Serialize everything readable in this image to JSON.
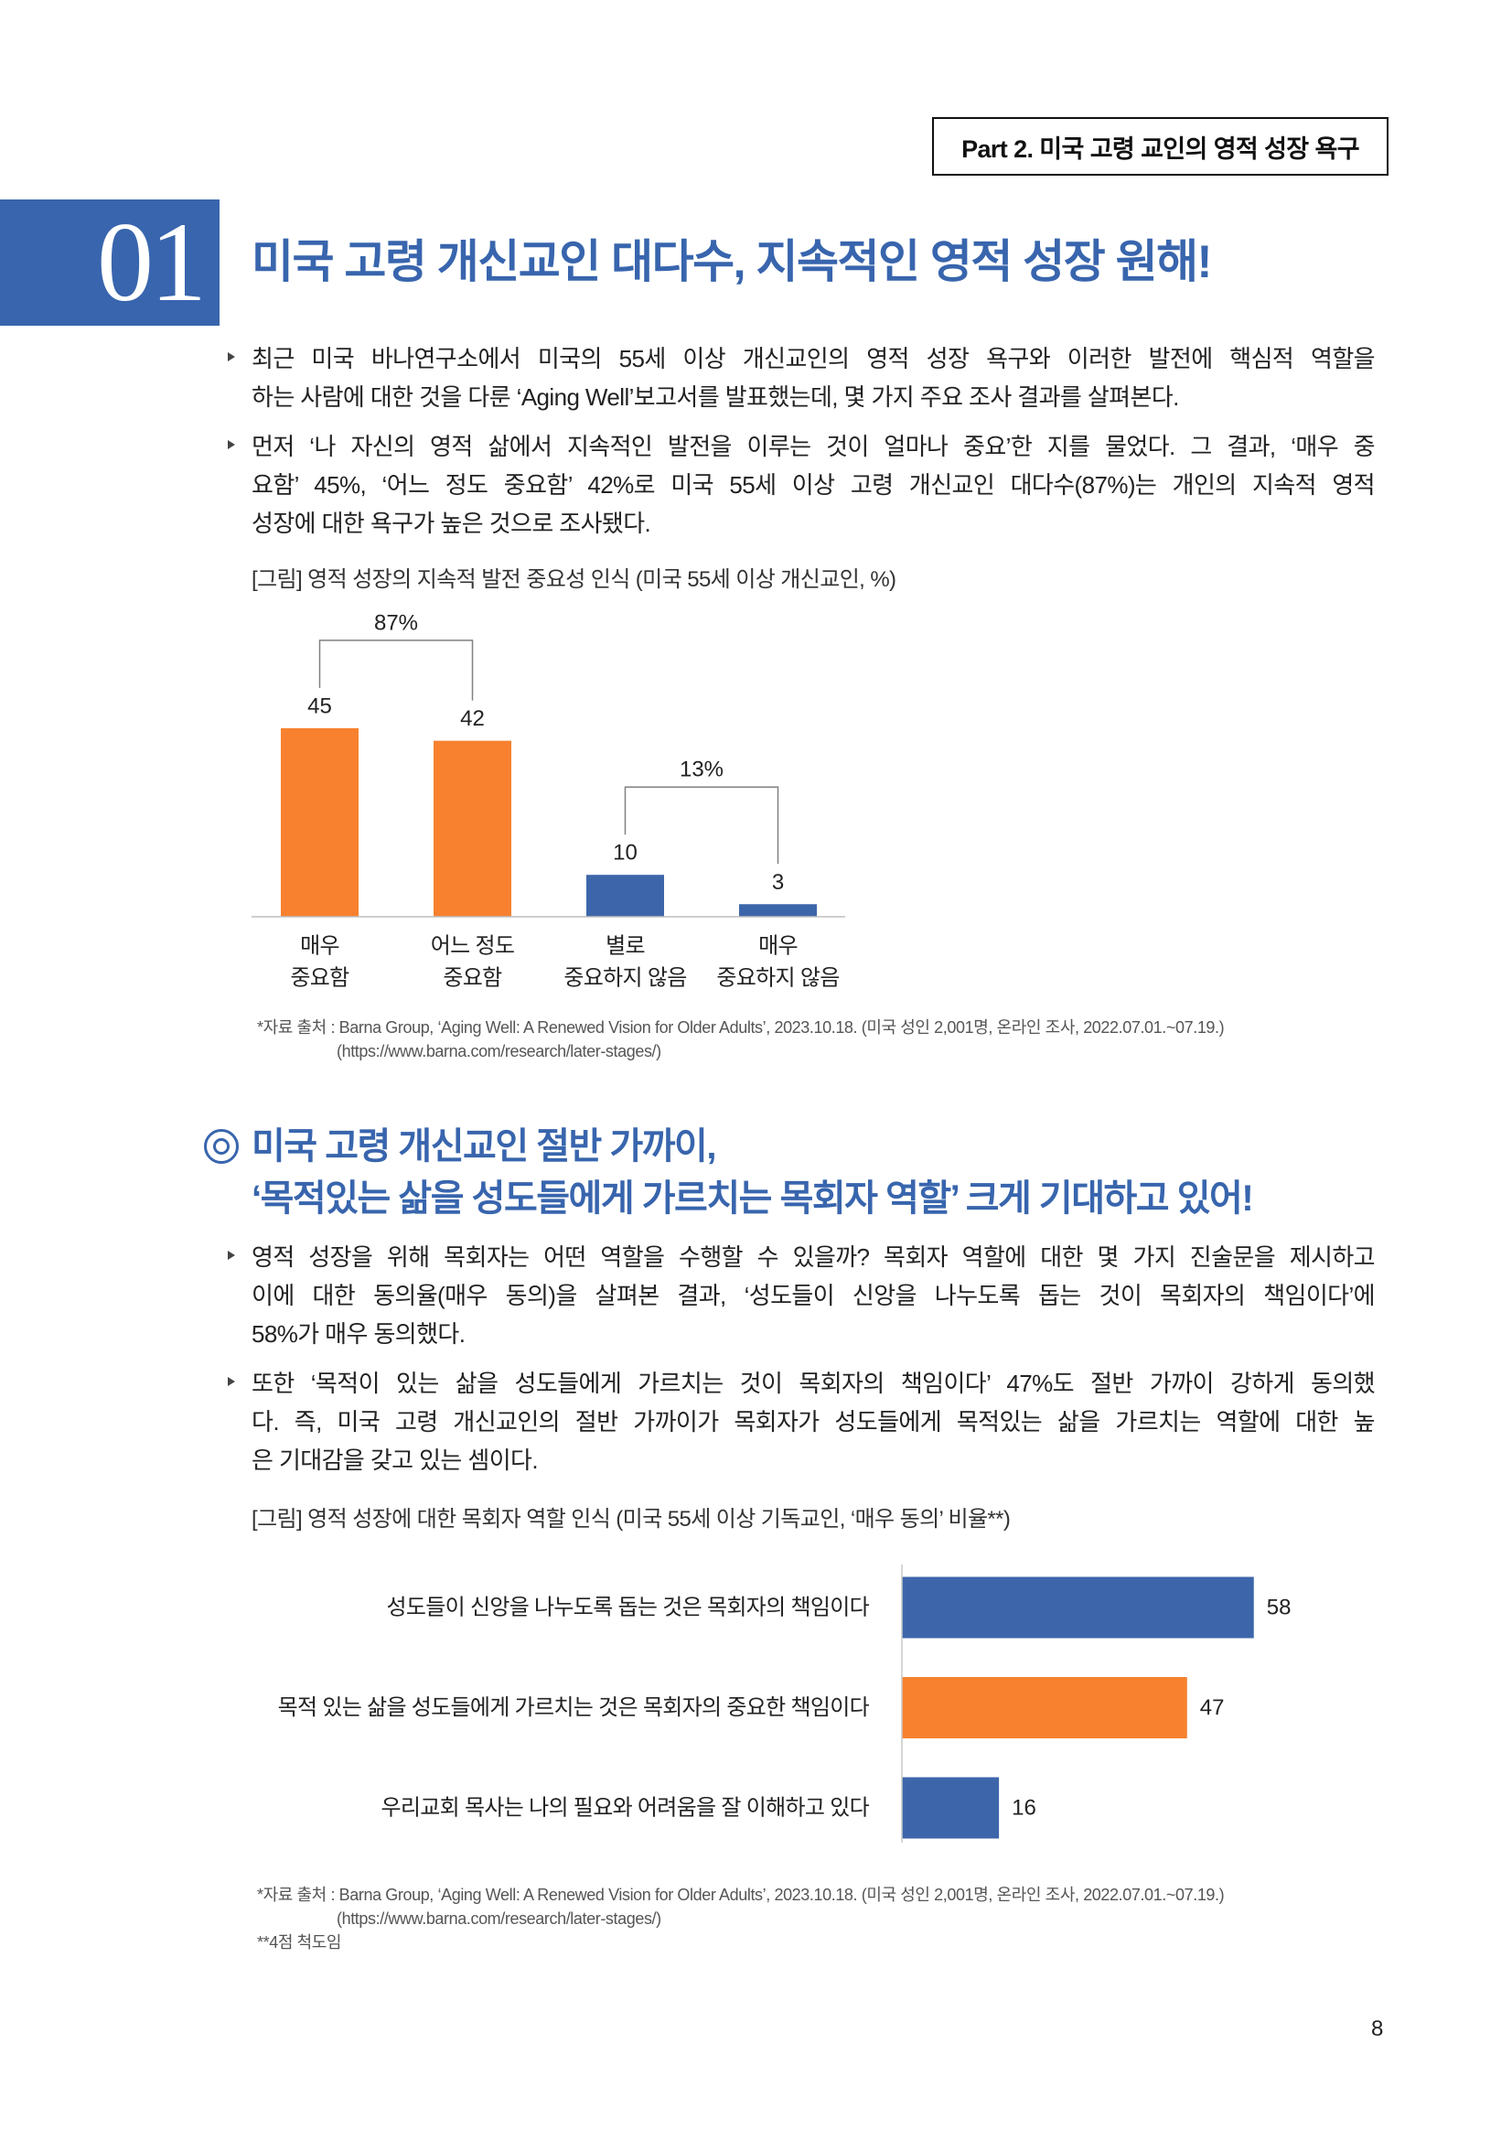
{
  "header": {
    "part_label": "Part 2. 미국 고령 교인의 영적 성장 욕구"
  },
  "section1": {
    "number": "01",
    "title": "미국 고령 개신교인 대다수, 지속적인 영적 성장 원해!",
    "paragraphs": [
      [
        "최근 미국 바나연구소에서 미국의 55세 이상 개신교인의 영적 성장 욕구와 이러한 발전에 핵심적 역할을",
        "하는 사람에 대한 것을 다룬 ‘Aging Well’보고서를 발표했는데, 몇 가지 주요 조사 결과를 살펴본다."
      ],
      [
        "먼저 ‘나 자신의 영적 삶에서 지속적인 발전을 이루는 것이 얼마나 중요’한 지를 물었다. 그 결과, ‘매우 중",
        "요함’ 45%, ‘어느 정도 중요함’ 42%로 미국 55세 이상 고령 개신교인 대다수(87%)는 개인의 지속적 영적",
        "성장에 대한 욕구가 높은 것으로 조사됐다."
      ]
    ],
    "source_lines": [
      "*자료 출처 : Barna Group, ‘Aging Well: A Renewed Vision for Older Adults’, 2023.10.18. (미국 성인 2,001명, 온라인 조사, 2022.07.01.~07.19.)",
      "(https://www.barna.com/research/later-stages/)"
    ]
  },
  "section2": {
    "heading_lines": [
      "미국 고령 개신교인 절반 가까이,",
      "‘목적있는 삶을 성도들에게 가르치는 목회자 역할’ 크게 기대하고 있어!"
    ],
    "paragraphs": [
      [
        "영적 성장을 위해 목회자는 어떤 역할을 수행할 수 있을까? 목회자 역할에 대한 몇 가지 진술문을 제시하고",
        "이에 대한 동의율(매우 동의)을 살펴본 결과, ‘성도들이 신앙을 나누도록 돕는 것이 목회자의 책임이다’에",
        "58%가 매우 동의했다."
      ],
      [
        "또한 ‘목적이 있는 삶을 성도들에게 가르치는 것이 목회자의 책임이다’ 47%도 절반 가까이 강하게 동의했",
        "다. 즉, 미국 고령 개신교인의 절반 가까이가 목회자가 성도들에게 목적있는 삶을 가르치는 역할에 대한 높",
        "은 기대감을 갖고 있는 셈이다."
      ]
    ],
    "source_lines": [
      "*자료 출처 : Barna Group, ‘Aging Well: A Renewed Vision for Older Adults’, 2023.10.18. (미국 성인 2,001명, 온라인 조사, 2022.07.01.~07.19.)",
      "(https://www.barna.com/research/later-stages/)",
      "**4점 척도임"
    ]
  },
  "page_number": "8",
  "colors": {
    "brand_blue": "#3865ad",
    "highlight_orange": "#f7812f",
    "bar_blue": "#3d66aa"
  },
  "chart_data": [
    {
      "type": "bar",
      "title": "[그림] 영적 성장의 지속적 발전 중요성 인식 (미국 55세 이상 개신교인, %)",
      "categories": [
        [
          "매우",
          "중요함"
        ],
        [
          "어느 정도",
          "중요함"
        ],
        [
          "별로",
          "중요하지 않음"
        ],
        [
          "매우",
          "중요하지 않음"
        ]
      ],
      "values": [
        45,
        42,
        10,
        3
      ],
      "bar_colors": [
        "#f7812f",
        "#f7812f",
        "#3d66aa",
        "#3d66aa"
      ],
      "group_totals": [
        {
          "label": "87%",
          "bars": [
            0,
            1
          ]
        },
        {
          "label": "13%",
          "bars": [
            2,
            3
          ]
        }
      ],
      "ylim": [
        0,
        50
      ],
      "grid": false
    },
    {
      "type": "bar",
      "orientation": "horizontal",
      "title": "[그림] 영적 성장에 대한 목회자 역할 인식 (미국 55세 이상 기독교인, ‘매우 동의’ 비율**)",
      "categories": [
        "성도들이 신앙을 나누도록 돕는 것은 목회자의 책임이다",
        "목적 있는 삶을 성도들에게 가르치는 것은 목회자의 중요한 책임이다",
        "우리교회 목사는 나의 필요와 어려움을 잘 이해하고 있다"
      ],
      "values": [
        58,
        47,
        16
      ],
      "bar_colors": [
        "#3d66aa",
        "#f7812f",
        "#3d66aa"
      ],
      "xlim": [
        0,
        60
      ],
      "grid": false
    }
  ]
}
